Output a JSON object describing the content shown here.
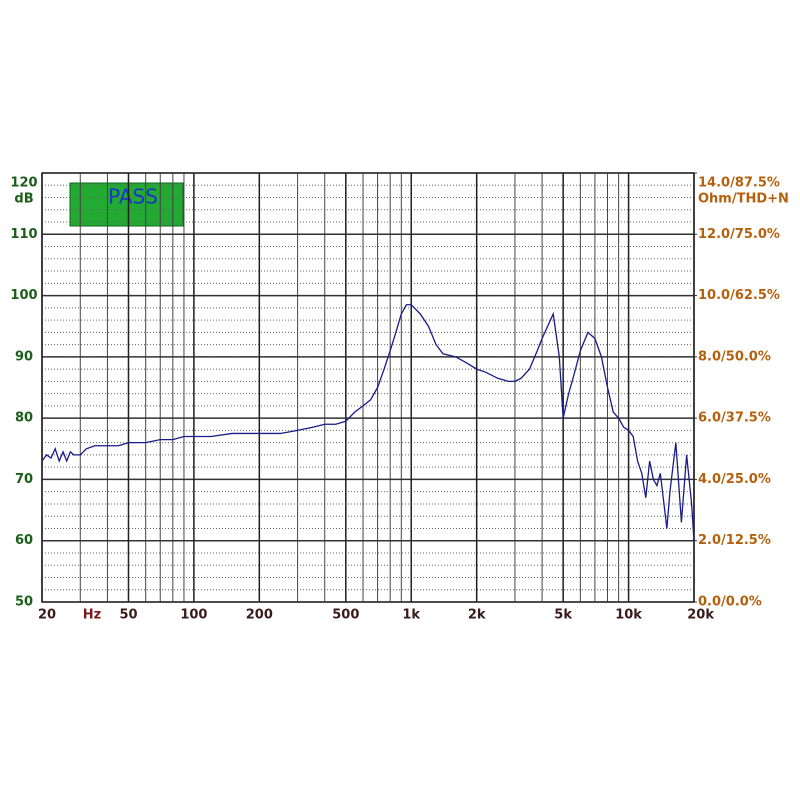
{
  "chart_data": {
    "type": "line",
    "badge": "PASS",
    "ylabel": "dB",
    "y2label": "Ohm/THD+N",
    "xlabel": "Hz",
    "log_x": true,
    "grid": true,
    "series": [
      {
        "color": "#1a1a8a",
        "x": [
          20,
          21,
          22,
          23,
          24,
          25,
          26,
          27,
          28,
          30,
          32,
          35,
          40,
          45,
          50,
          60,
          70,
          80,
          90,
          100,
          120,
          150,
          200,
          250,
          300,
          350,
          400,
          450,
          500,
          550,
          600,
          650,
          700,
          750,
          800,
          850,
          900,
          950,
          1000,
          1100,
          1200,
          1300,
          1400,
          1600,
          1800,
          2000,
          2200,
          2500,
          2800,
          3000,
          3200,
          3500,
          3800,
          4000,
          4500,
          4800,
          5000,
          5300,
          5600,
          6000,
          6500,
          7000,
          7500,
          8000,
          8500,
          9000,
          9500,
          10000,
          10500,
          11000,
          11500,
          12000,
          12500,
          13000,
          13500,
          14000,
          15000,
          15500,
          16500,
          17500,
          18500,
          19500,
          20000
        ],
        "values": [
          73,
          74,
          73.5,
          75,
          73,
          74.5,
          73,
          74.5,
          74,
          74,
          75,
          75.5,
          75.5,
          75.5,
          76,
          76,
          76.5,
          76.5,
          77,
          77,
          77,
          77.5,
          77.5,
          77.5,
          78,
          78.5,
          79,
          79,
          79.5,
          81,
          82,
          83,
          85,
          88,
          91,
          94,
          97,
          98.5,
          98.5,
          97,
          95,
          92,
          90.5,
          90,
          89,
          88,
          87.5,
          86.5,
          86,
          86,
          86.5,
          88,
          91,
          93,
          97,
          90,
          80,
          84,
          87,
          91,
          94,
          93,
          90,
          85,
          81,
          80,
          78.5,
          78,
          77,
          73,
          71,
          67,
          73,
          70,
          69,
          71,
          62,
          68,
          76,
          63,
          74,
          66,
          60
        ]
      }
    ],
    "xlim": [
      20,
      20000
    ],
    "xticks": [
      20,
      50,
      100,
      200,
      500,
      {
        "value": 1000,
        "label": "1k"
      },
      {
        "value": 2000,
        "label": "2k"
      },
      {
        "value": 5000,
        "label": "5k"
      },
      {
        "value": 10000,
        "label": "10k"
      },
      {
        "value": 20000,
        "label": "20k"
      }
    ],
    "ylim": [
      50,
      120
    ],
    "yticks": [
      50,
      60,
      70,
      80,
      90,
      100,
      110,
      120
    ],
    "y2lim": [
      0,
      14
    ],
    "y2ticks": [
      {
        "value": 0,
        "label": "0.0/0.0%"
      },
      {
        "value": 2,
        "label": "2.0/12.5%"
      },
      {
        "value": 4,
        "label": "4.0/25.0%"
      },
      {
        "value": 6,
        "label": "6.0/37.5%"
      },
      {
        "value": 8,
        "label": "8.0/50.0%"
      },
      {
        "value": 10,
        "label": "10.0/62.5%"
      },
      {
        "value": 12,
        "label": "12.0/75.0%"
      },
      {
        "value": 14,
        "label": "14.0/87.5%"
      }
    ]
  }
}
